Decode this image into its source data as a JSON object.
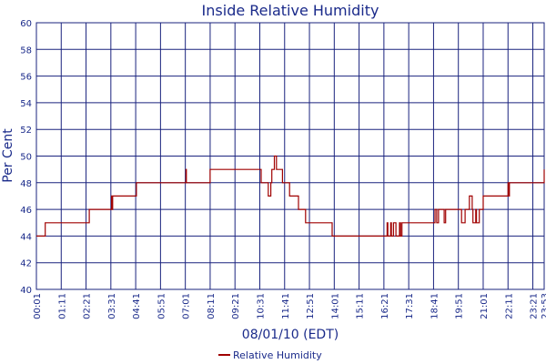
{
  "chart_data": {
    "type": "line",
    "title": "Inside Relative Humidity",
    "xlabel": "08/01/10 (EDT)",
    "ylabel": "Per Cent",
    "ylim": [
      40,
      60
    ],
    "yticks": [
      "40",
      "42",
      "44",
      "46",
      "48",
      "50",
      "52",
      "54",
      "56",
      "58",
      "60"
    ],
    "xticks": [
      "00:01",
      "01:11",
      "02:21",
      "03:31",
      "04:41",
      "05:51",
      "07:01",
      "08:11",
      "09:21",
      "10:31",
      "11:41",
      "12:51",
      "14:01",
      "15:11",
      "16:21",
      "17:31",
      "18:41",
      "19:51",
      "21:01",
      "22:11",
      "23:21",
      "23:53"
    ],
    "grid": true,
    "legend_position": "bottom-center",
    "colors": {
      "grid": "#1a237e",
      "line": "#a00000",
      "text": "#1a2a8a"
    },
    "series": [
      {
        "name": "Relative Humidity",
        "x": [
          "00:01",
          "00:10",
          "00:11",
          "00:25",
          "00:26",
          "01:11",
          "01:12",
          "02:10",
          "02:30",
          "02:33",
          "02:36",
          "02:45",
          "03:31",
          "03:33",
          "03:34",
          "03:36",
          "04:41",
          "04:43",
          "05:51",
          "06:40",
          "07:01",
          "07:03",
          "07:04",
          "08:11",
          "10:05",
          "10:10",
          "10:20",
          "10:35",
          "10:45",
          "10:50",
          "10:55",
          "11:00",
          "11:02",
          "11:05",
          "11:12",
          "11:18",
          "11:20",
          "11:25",
          "11:33",
          "11:35",
          "11:41",
          "11:42",
          "11:55",
          "12:00",
          "12:05",
          "12:20",
          "12:25",
          "12:30",
          "12:40",
          "12:51",
          "12:55",
          "13:10",
          "13:15",
          "13:55",
          "14:01",
          "14:15",
          "15:11",
          "15:45",
          "16:21",
          "16:30",
          "16:32",
          "16:40",
          "16:42",
          "16:48",
          "16:50",
          "16:55",
          "17:05",
          "17:08",
          "17:12",
          "17:15",
          "17:20",
          "17:25",
          "17:31",
          "17:35",
          "17:45",
          "18:41",
          "18:45",
          "18:50",
          "18:55",
          "19:10",
          "19:11",
          "19:15",
          "19:20",
          "19:30",
          "19:35",
          "19:51",
          "19:55",
          "20:00",
          "20:10",
          "20:20",
          "20:22",
          "20:30",
          "20:32",
          "20:40",
          "20:42",
          "20:50",
          "20:55",
          "21:01",
          "21:05",
          "21:10",
          "21:20",
          "21:40",
          "22:11",
          "22:13",
          "22:15",
          "22:18",
          "23:21",
          "23:45",
          "23:48",
          "23:50",
          "23:53"
        ],
        "values": [
          44,
          44,
          44,
          44,
          45,
          45,
          45,
          45,
          46,
          46,
          46,
          46,
          46,
          47,
          46,
          47,
          47,
          48,
          48,
          48,
          48,
          49,
          48,
          49,
          49,
          49,
          49,
          48,
          48,
          48,
          47,
          47,
          48,
          49,
          50,
          49,
          49,
          49,
          49,
          48,
          48,
          48,
          47,
          47,
          47,
          46,
          46,
          46,
          45,
          45,
          45,
          45,
          45,
          44,
          44,
          44,
          44,
          44,
          44,
          45,
          44,
          45,
          44,
          45,
          45,
          44,
          45,
          44,
          45,
          45,
          45,
          45,
          45,
          45,
          45,
          45,
          46,
          45,
          46,
          46,
          45,
          46,
          46,
          46,
          46,
          46,
          46,
          45,
          46,
          46,
          47,
          46,
          45,
          46,
          45,
          46,
          46,
          47,
          47,
          47,
          47,
          47,
          48,
          47,
          48,
          48,
          48,
          48,
          48,
          48,
          49
        ]
      }
    ]
  }
}
